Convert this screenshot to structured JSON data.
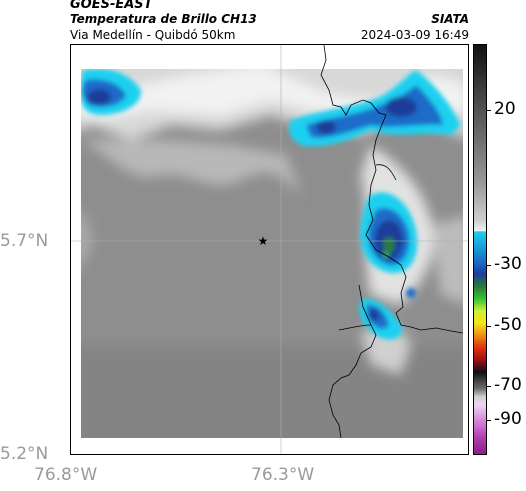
{
  "header": {
    "title": "GOES-EAST",
    "product": "Temperatura de Brillo CH13",
    "route": "Via Medellín - Quibdó 50km",
    "organization": "SIATA",
    "datetime": "2024-03-09 16:49"
  },
  "axes": {
    "lat_labels": [
      "5.7°N",
      "5.2°N"
    ],
    "lon_labels": [
      "76.8°W",
      "76.3°W"
    ]
  },
  "colorbar": {
    "labels": [
      "20",
      "-30",
      "-50",
      "-70",
      "-90"
    ]
  },
  "colors": {
    "cold_cloud": "#1e6cc8",
    "cloud_edge": "#1ad0f0",
    "deep_core": "#1a3c9a",
    "background_gray": "#8e8e8e"
  },
  "map": {
    "marker_icon": "star-icon"
  }
}
